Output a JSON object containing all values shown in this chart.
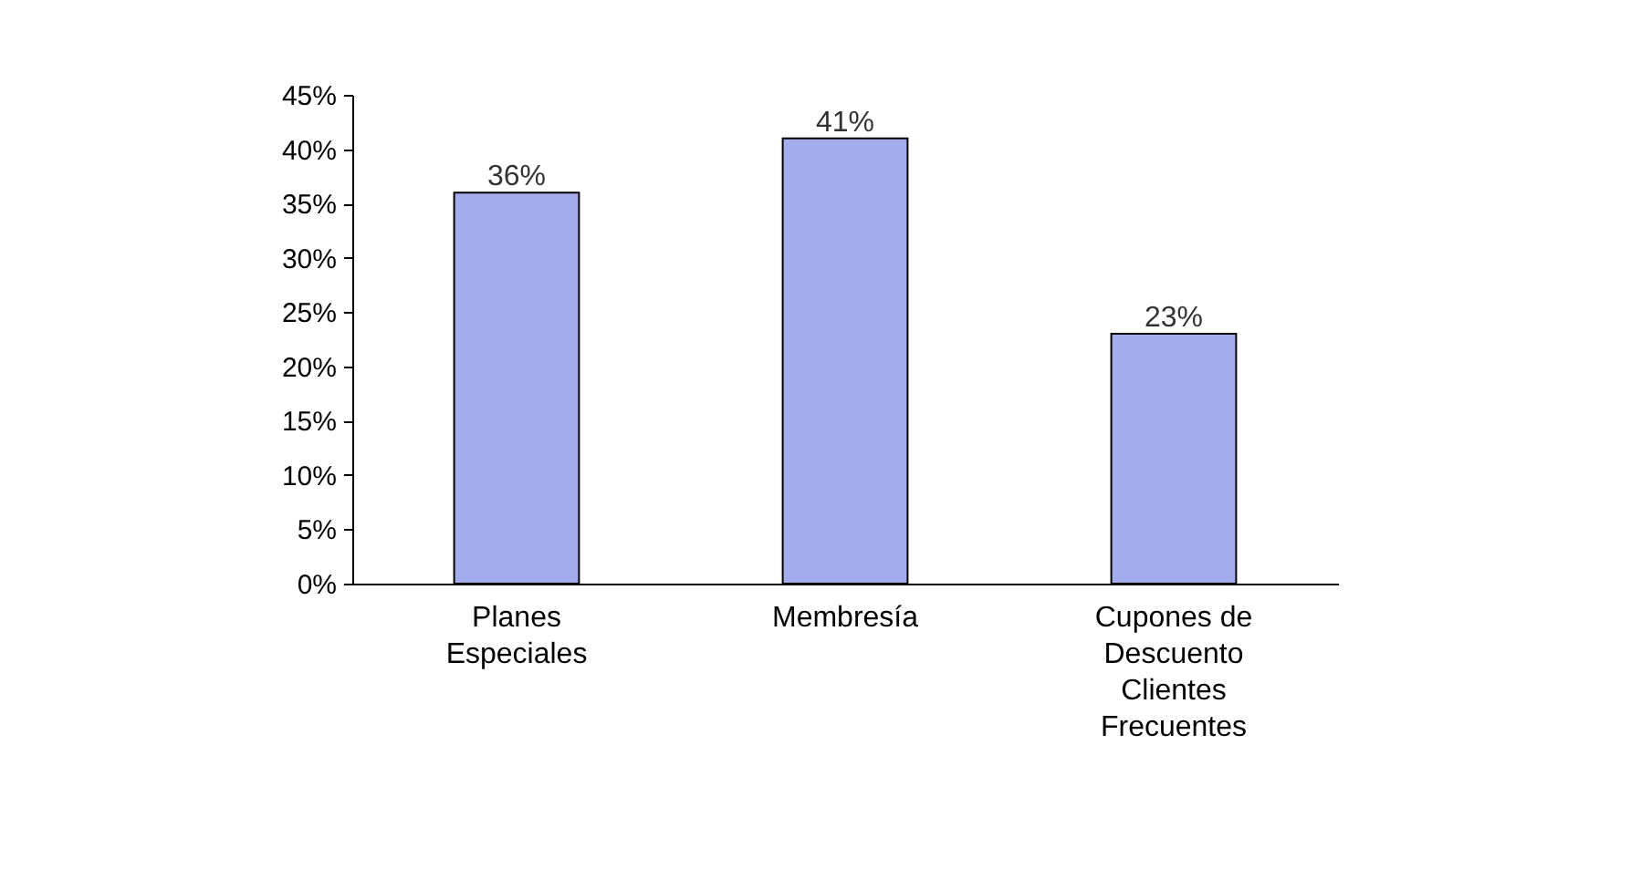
{
  "chart_data": {
    "type": "bar",
    "categories": [
      "Planes Especiales",
      "Membresía",
      "Cupones de Descuento Clientes Frecuentes"
    ],
    "values": [
      36,
      41,
      23
    ],
    "value_labels": [
      "36%",
      "41%",
      "23%"
    ],
    "color": "#a4acee",
    "ylim": [
      0,
      45
    ],
    "yticks": [
      {
        "value": 0,
        "label": "0%"
      },
      {
        "value": 5,
        "label": "5%"
      },
      {
        "value": 10,
        "label": "10%"
      },
      {
        "value": 15,
        "label": "15%"
      },
      {
        "value": 20,
        "label": "20%"
      },
      {
        "value": 25,
        "label": "25%"
      },
      {
        "value": 30,
        "label": "30%"
      },
      {
        "value": 35,
        "label": "35%"
      },
      {
        "value": 40,
        "label": "40%"
      },
      {
        "value": 45,
        "label": "45%"
      }
    ],
    "grid": false
  }
}
